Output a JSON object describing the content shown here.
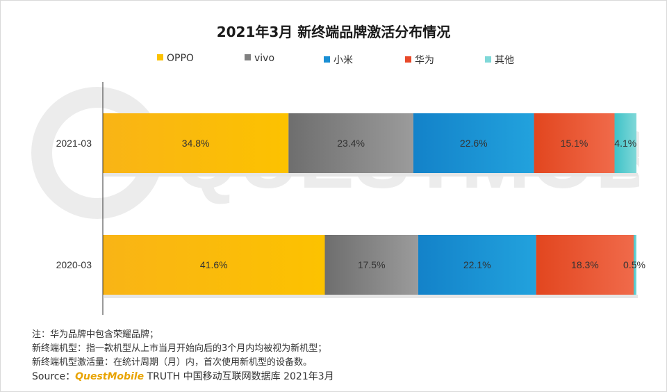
{
  "chart_data": {
    "type": "bar",
    "orientation": "horizontal",
    "stacked": true,
    "percent": true,
    "title": "2021年3月 新终端品牌激活分布情况",
    "categories": [
      "2021-03",
      "2020-03"
    ],
    "series": [
      {
        "name": "OPPO",
        "values": [
          34.8,
          41.6
        ],
        "labels": [
          "34.8%",
          "41.6%"
        ],
        "color": "#fcc200",
        "color_start": "#f9b416"
      },
      {
        "name": "vivo",
        "values": [
          23.4,
          17.5
        ],
        "labels": [
          "23.4%",
          "17.5%"
        ],
        "color": "#9b9b9b",
        "color_start": "#6e6e6e"
      },
      {
        "name": "小米",
        "values": [
          22.6,
          22.1
        ],
        "labels": [
          "22.6%",
          "22.1%"
        ],
        "color": "#22a2dd",
        "color_start": "#1382c9"
      },
      {
        "name": "华为",
        "values": [
          15.1,
          18.3
        ],
        "labels": [
          "15.1%",
          "18.3%"
        ],
        "color": "#f06a4a",
        "color_start": "#e2461f"
      },
      {
        "name": "其他",
        "values": [
          4.1,
          0.5
        ],
        "labels": [
          "4.1%",
          "0.5%"
        ],
        "color": "#7fd8d8",
        "color_start": "#3fc2c8"
      }
    ],
    "xlim": [
      0,
      100
    ],
    "legend_position": "top",
    "grid": false
  },
  "footnotes": {
    "line1": "注：华为品牌中包含荣耀品牌；",
    "line2": "新终端机型：指一款机型从上市当月开始向后的3个月内均被视为新机型；",
    "line3": "新终端机型激活量：在统计周期（月）内，首次使用新机型的设备数。"
  },
  "source": {
    "label": "Source：",
    "brand": "QuestMobile",
    "text": " TRUTH 中国移动互联网数据库 2021年3月"
  },
  "watermark": {
    "text": "QUESTMOBILE"
  }
}
